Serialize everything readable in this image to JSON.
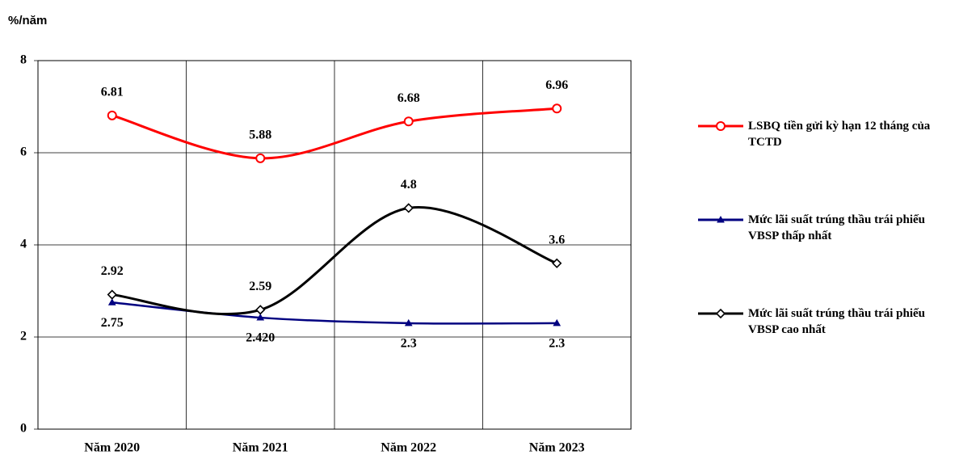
{
  "chart_data": {
    "type": "line",
    "y_label": "%/năm",
    "categories": [
      "Năm 2020",
      "Năm 2021",
      "Năm 2022",
      "Năm 2023"
    ],
    "series": [
      {
        "name": "LSBQ tiền gửi kỳ hạn 12 tháng của TCTD",
        "color": "#ff0000",
        "marker": "circle",
        "values": [
          6.81,
          5.88,
          6.68,
          6.96
        ]
      },
      {
        "name": "Mức lãi suất trúng thầu trái phiếu VBSP thấp nhất",
        "color": "#000080",
        "marker": "triangle",
        "values": [
          2.75,
          2.42,
          2.3,
          2.3
        ],
        "value_labels": [
          "2.75",
          "2.420",
          "2.3",
          "2.3"
        ]
      },
      {
        "name": "Mức lãi suất trúng thầu trái phiếu VBSP cao nhất",
        "color": "#000000",
        "marker": "diamond",
        "values": [
          2.92,
          2.59,
          4.8,
          3.6
        ]
      }
    ],
    "ylim": [
      0,
      8
    ],
    "yticks": [
      0,
      2,
      4,
      6,
      8
    ],
    "grid": true,
    "legend": "right"
  }
}
